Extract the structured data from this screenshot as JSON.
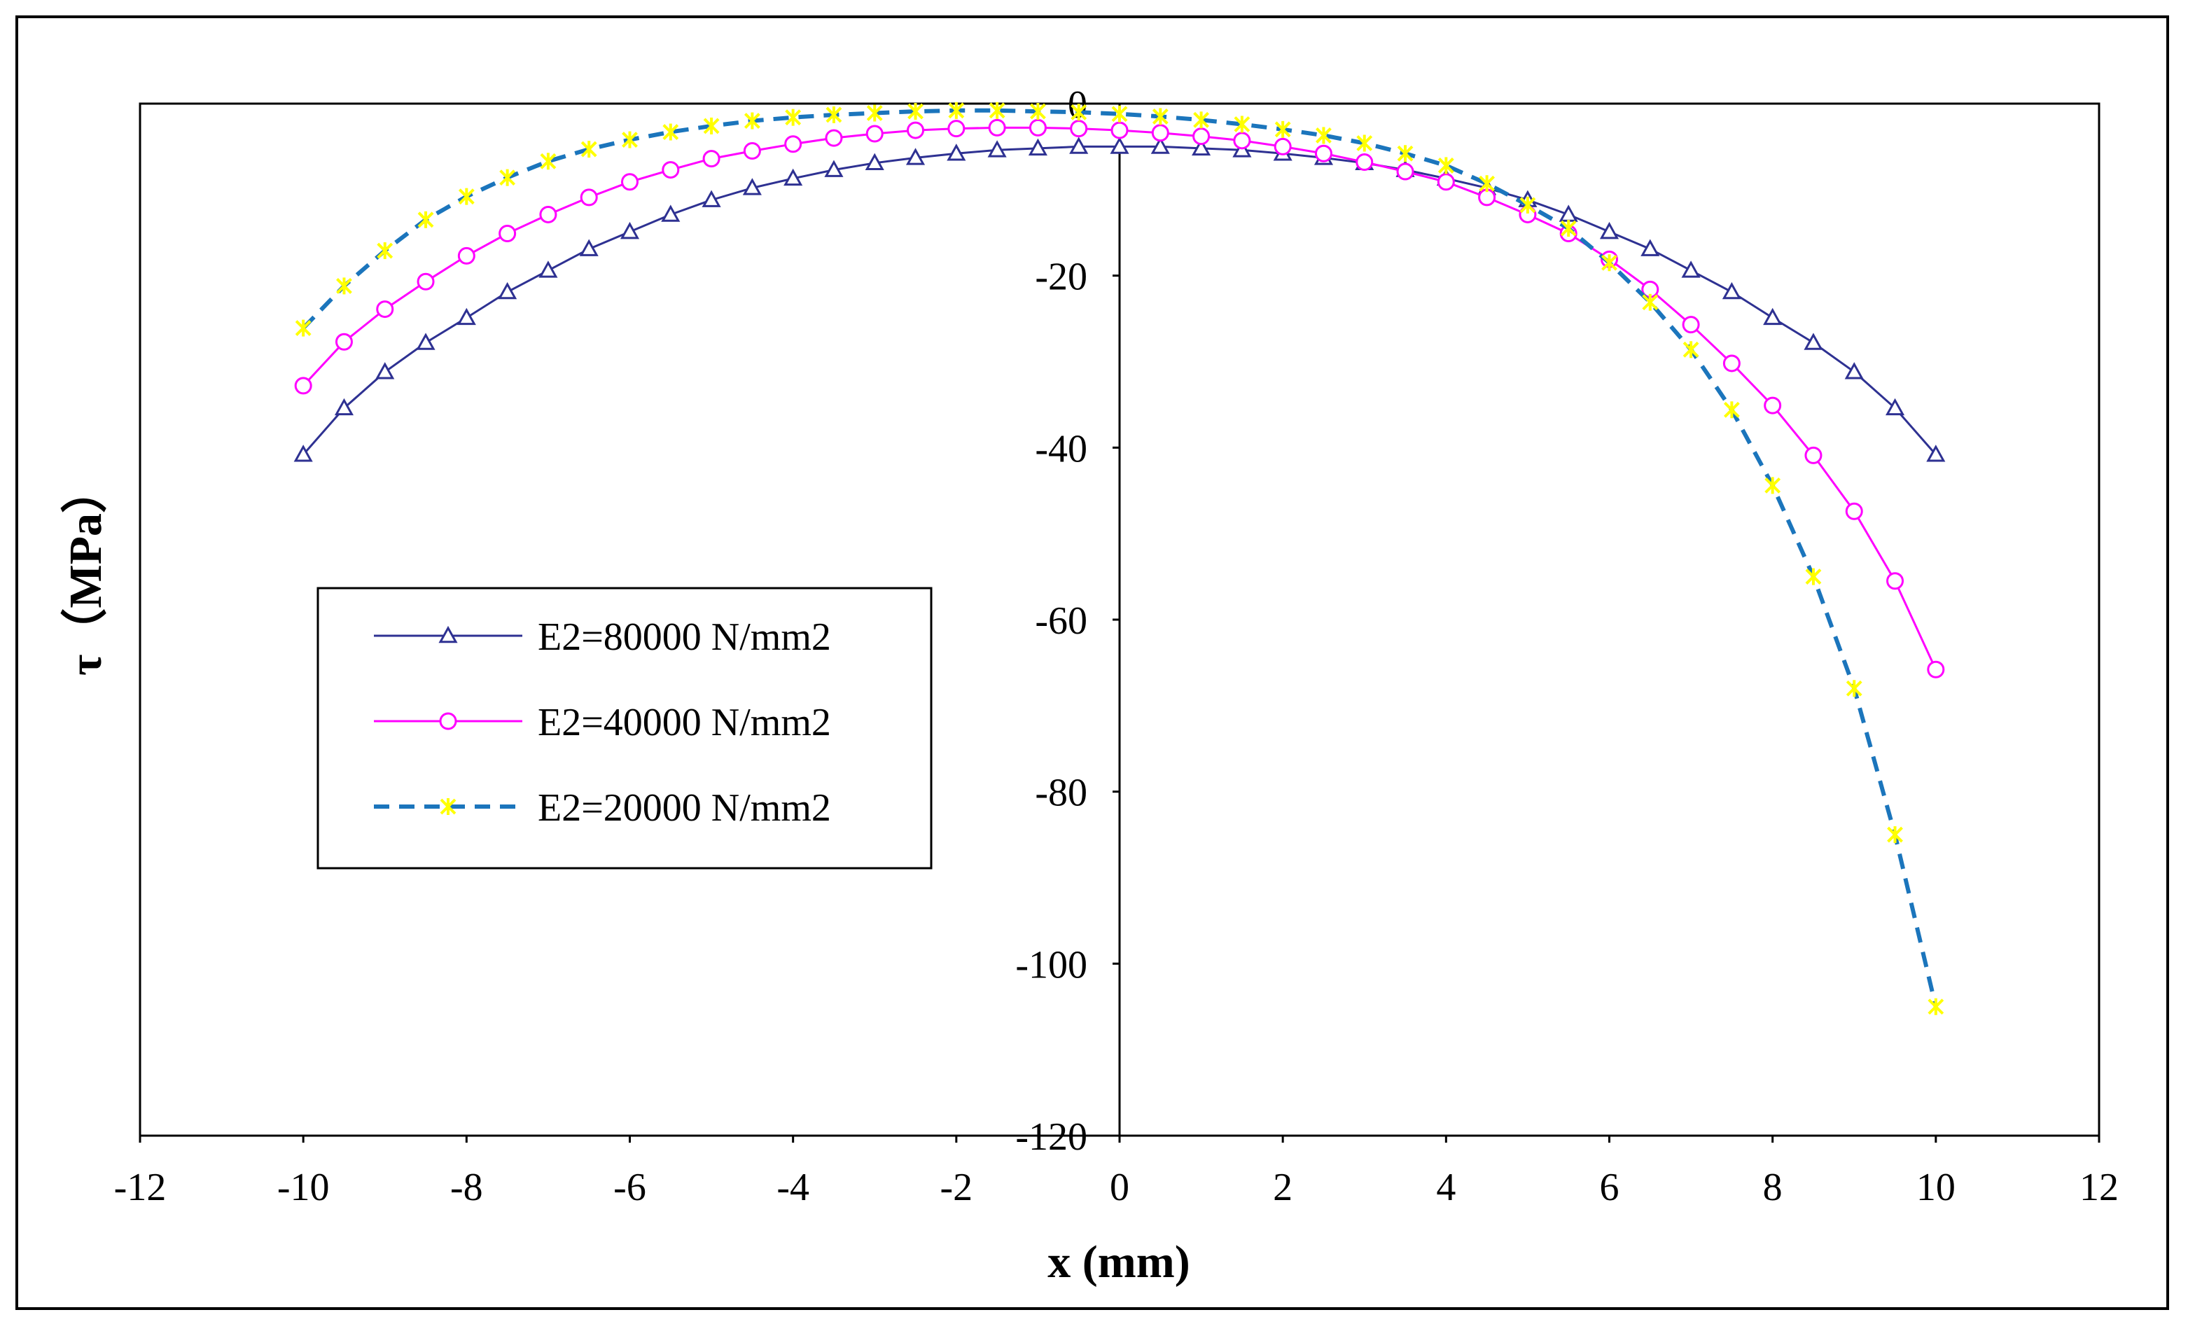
{
  "chart_data": {
    "type": "line",
    "title": "",
    "xlabel": "x (mm)",
    "ylabel": "τ（MPa）",
    "xlim": [
      -12,
      12
    ],
    "ylim": [
      -120,
      0
    ],
    "xticks": [
      -12,
      -10,
      -8,
      -6,
      -4,
      -2,
      0,
      2,
      4,
      6,
      8,
      10,
      12
    ],
    "yticks": [
      0,
      -20,
      -40,
      -60,
      -80,
      -100,
      -120
    ],
    "x": [
      -10,
      -9.5,
      -9,
      -8.5,
      -8,
      -7.5,
      -7,
      -6.5,
      -6,
      -5.5,
      -5,
      -4.5,
      -4,
      -3.5,
      -3,
      -2.5,
      -2,
      -1.5,
      -1,
      -0.5,
      0,
      0.5,
      1,
      1.5,
      2,
      2.5,
      3,
      3.5,
      4,
      4.5,
      5,
      5.5,
      6,
      6.5,
      7,
      7.5,
      8,
      8.5,
      9,
      9.5,
      10
    ],
    "series": [
      {
        "name": "E2=80000 N/mm2",
        "color": "#2E3192",
        "marker": "triangle",
        "line_style": "solid",
        "values": [
          -40.8,
          -35.4,
          -31.2,
          -27.8,
          -24.9,
          -21.9,
          -19.4,
          -16.9,
          -14.9,
          -12.9,
          -11.2,
          -9.8,
          -8.7,
          -7.7,
          -6.9,
          -6.3,
          -5.8,
          -5.4,
          -5.2,
          -5.0,
          -5.0,
          -5.0,
          -5.2,
          -5.4,
          -5.8,
          -6.3,
          -6.9,
          -7.7,
          -8.7,
          -9.8,
          -11.2,
          -12.9,
          -14.9,
          -16.9,
          -19.4,
          -21.9,
          -24.9,
          -27.8,
          -31.2,
          -35.4,
          -40.8
        ]
      },
      {
        "name": "E2=40000 N/mm2",
        "color": "#FF00FF",
        "marker": "circle",
        "line_style": "solid",
        "values": [
          -32.8,
          -27.7,
          -23.9,
          -20.7,
          -17.7,
          -15.1,
          -12.9,
          -10.9,
          -9.1,
          -7.7,
          -6.4,
          -5.5,
          -4.7,
          -4.0,
          -3.5,
          -3.1,
          -2.9,
          -2.8,
          -2.8,
          -2.9,
          -3.1,
          -3.4,
          -3.8,
          -4.3,
          -5.0,
          -5.8,
          -6.8,
          -7.9,
          -9.1,
          -10.9,
          -12.9,
          -15.1,
          -18.1,
          -21.6,
          -25.7,
          -30.2,
          -35.1,
          -40.9,
          -47.4,
          -55.5,
          -65.8
        ]
      },
      {
        "name": "E2=20000 N/mm2",
        "color": "#1B75BC",
        "marker": "star",
        "marker_color": "#FFFF00",
        "line_style": "dashed",
        "values": [
          -26.1,
          -21.2,
          -17.1,
          -13.5,
          -10.8,
          -8.6,
          -6.7,
          -5.3,
          -4.2,
          -3.3,
          -2.6,
          -2.0,
          -1.6,
          -1.3,
          -1.1,
          -0.9,
          -0.8,
          -0.8,
          -0.9,
          -1.0,
          -1.2,
          -1.5,
          -1.9,
          -2.4,
          -3.0,
          -3.7,
          -4.6,
          -5.8,
          -7.2,
          -9.3,
          -11.8,
          -14.5,
          -18.5,
          -23.1,
          -28.6,
          -35.6,
          -44.4,
          -55.0,
          -68.0,
          -85.0,
          -105.0
        ]
      }
    ]
  }
}
